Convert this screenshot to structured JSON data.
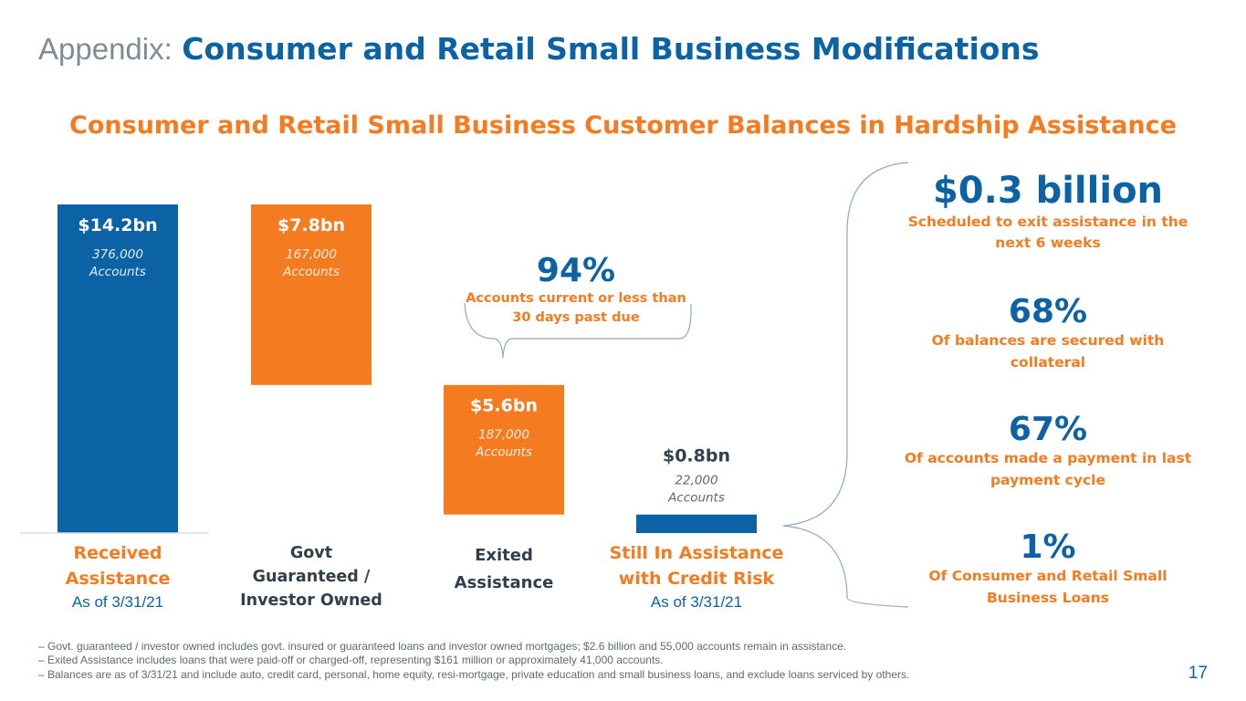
{
  "title": {
    "prefix": "Appendix:",
    "main": "Consumer and Retail Small Business Modifications"
  },
  "chart_data": {
    "type": "bar",
    "title": "Consumer and Retail Small Business Customer Balances in Hardship Assistance",
    "categories": [
      "Received Assistance",
      "Govt Guaranteed / Investor Owned",
      "Exited Assistance",
      "Still In Assistance with Credit Risk"
    ],
    "values": [
      14.2,
      7.8,
      5.6,
      0.8
    ],
    "value_labels": [
      "$14.2bn",
      "$7.8bn",
      "$5.6bn",
      "$0.8bn"
    ],
    "account_labels": [
      "376,000",
      "167,000",
      "187,000",
      "22,000"
    ],
    "accounts_word": "Accounts",
    "colors": [
      "#0b62a4",
      "#f47b20",
      "#f47b20",
      "#0b62a4"
    ],
    "waterfall": true,
    "ylim": [
      0,
      14.2
    ]
  },
  "categories_text": [
    {
      "lines": [
        "Received",
        "Assistance"
      ],
      "sub": "As of 3/31/21",
      "color": "#f47b20"
    },
    {
      "lines": [
        "Govt",
        "Guaranteed /",
        "Investor Owned"
      ],
      "sub": "",
      "color": "#333f48"
    },
    {
      "lines": [
        "Exited",
        "Assistance"
      ],
      "sub": "",
      "color": "#333f48"
    },
    {
      "lines": [
        "Still In Assistance",
        "with Credit Risk"
      ],
      "sub": "As of 3/31/21",
      "color": "#f47b20"
    }
  ],
  "callout": {
    "pct": "94%",
    "desc": "Accounts current or less than 30 days past due"
  },
  "stats": [
    {
      "value": "$0.3 billion",
      "desc": "Scheduled to exit assistance in the next 6 weeks"
    },
    {
      "value": "68%",
      "desc": "Of balances are secured with collateral"
    },
    {
      "value": "67%",
      "desc": "Of accounts made a payment in last payment cycle"
    },
    {
      "value": "1%",
      "desc": "Of Consumer and Retail Small Business Loans"
    }
  ],
  "footnotes": [
    "– Govt. guaranteed / investor owned includes govt. insured or guaranteed loans and investor owned mortgages; $2.6 billion and 55,000 accounts remain in assistance.",
    "– Exited Assistance includes loans that were paid-off or charged-off, representing $161 million or approximately 41,000 accounts.",
    "– Balances are as of 3/31/21 and include auto, credit card, personal, home equity, resi-mortgage, private education and small business loans, and exclude loans serviced by others."
  ],
  "page_number": "17",
  "colors": {
    "blue": "#0b62a4",
    "orange": "#f47b20",
    "gray": "#7f8c95"
  }
}
